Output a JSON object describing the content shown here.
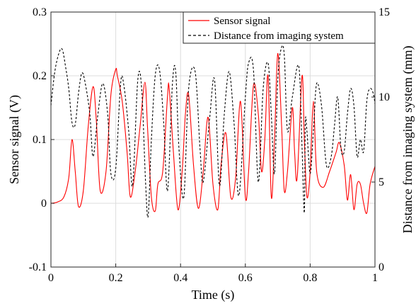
{
  "chart_data": {
    "type": "line",
    "xlabel": "Time (s)",
    "ylabel_left": "Sensor signal (V)",
    "ylabel_right": "Distance from imaging system (mm)",
    "xlim": [
      0,
      1
    ],
    "ylim_left": [
      -0.1,
      0.3
    ],
    "ylim_right": [
      0,
      15
    ],
    "x_ticks": [
      "0",
      "0.2",
      "0.4",
      "0.6",
      "0.8",
      "1"
    ],
    "y_left_ticks": [
      "-0.1",
      "0",
      "0.1",
      "0.2",
      "0.3"
    ],
    "y_right_ticks": [
      "0",
      "5",
      "10",
      "15"
    ],
    "grid": true,
    "legend_position": "top-right",
    "series": [
      {
        "name": "Sensor signal",
        "axis": "left",
        "color": "#ff0000",
        "style": "solid",
        "x": [
          0,
          0.02,
          0.04,
          0.055,
          0.065,
          0.075,
          0.085,
          0.1,
          0.115,
          0.13,
          0.14,
          0.152,
          0.17,
          0.185,
          0.2,
          0.205,
          0.22,
          0.235,
          0.245,
          0.26,
          0.275,
          0.29,
          0.298,
          0.31,
          0.322,
          0.33,
          0.345,
          0.36,
          0.365,
          0.378,
          0.392,
          0.405,
          0.415,
          0.425,
          0.44,
          0.455,
          0.47,
          0.485,
          0.5,
          0.515,
          0.525,
          0.54,
          0.555,
          0.57,
          0.585,
          0.6,
          0.61,
          0.625,
          0.64,
          0.65,
          0.66,
          0.67,
          0.68,
          0.69,
          0.7,
          0.712,
          0.72,
          0.73,
          0.745,
          0.752,
          0.76,
          0.775,
          0.782,
          0.79,
          0.8,
          0.81,
          0.82,
          0.84,
          0.86,
          0.88,
          0.89,
          0.905,
          0.915,
          0.925,
          0.935,
          0.945,
          0.955,
          0.965,
          0.975,
          0.985,
          1.0
        ],
        "y": [
          0,
          0.002,
          0.01,
          0.04,
          0.1,
          0.05,
          -0.005,
          0.02,
          0.12,
          0.183,
          0.13,
          0.02,
          0.05,
          0.17,
          0.21,
          0.2,
          0.16,
          0.08,
          0.01,
          0.05,
          0.12,
          0.19,
          0.12,
          0.01,
          -0.012,
          0.03,
          0.05,
          0.17,
          0.18,
          0.08,
          -0.01,
          0.05,
          0.14,
          0.17,
          0.06,
          -0.008,
          0.05,
          0.135,
          0.03,
          -0.01,
          0.06,
          0.11,
          0.01,
          0.04,
          0.16,
          0.01,
          0.05,
          0.185,
          0.14,
          0.05,
          0.1,
          0.2,
          0.01,
          0.1,
          0.235,
          0.12,
          0.02,
          0.05,
          0.15,
          0.08,
          0.04,
          0.2,
          0.1,
          0.01,
          0.05,
          0.16,
          0.05,
          0.025,
          0.05,
          0.08,
          0.095,
          0.06,
          0.005,
          0.045,
          -0.01,
          0.03,
          0.03,
          0.0,
          -0.015,
          0.03,
          0.058
        ]
      },
      {
        "name": "Distance from imaging system",
        "axis": "right",
        "color": "#000000",
        "style": "dashed",
        "x": [
          0,
          0.012,
          0.025,
          0.035,
          0.045,
          0.055,
          0.065,
          0.075,
          0.085,
          0.095,
          0.105,
          0.12,
          0.13,
          0.145,
          0.16,
          0.175,
          0.185,
          0.2,
          0.215,
          0.225,
          0.24,
          0.252,
          0.268,
          0.28,
          0.292,
          0.3,
          0.31,
          0.322,
          0.335,
          0.348,
          0.36,
          0.375,
          0.385,
          0.395,
          0.41,
          0.425,
          0.445,
          0.46,
          0.47,
          0.49,
          0.505,
          0.52,
          0.535,
          0.55,
          0.565,
          0.58,
          0.6,
          0.61,
          0.625,
          0.64,
          0.655,
          0.67,
          0.68,
          0.69,
          0.7,
          0.71,
          0.72,
          0.73,
          0.745,
          0.765,
          0.775,
          0.782,
          0.785,
          0.79,
          0.8,
          0.81,
          0.82,
          0.835,
          0.85,
          0.865,
          0.875,
          0.885,
          0.895,
          0.905,
          0.915,
          0.925,
          0.935,
          0.945,
          0.955,
          0.965,
          0.975,
          0.985,
          0.995,
          1.0
        ],
        "y": [
          9.5,
          11.5,
          12.6,
          12.8,
          11.8,
          10.5,
          8.5,
          8.4,
          10.2,
          11.4,
          10.9,
          9.0,
          6.5,
          9.0,
          10.8,
          9.0,
          5.5,
          5.8,
          10.8,
          10.7,
          8.0,
          4.8,
          11.0,
          10.5,
          5.0,
          3.0,
          7.5,
          11.3,
          11.6,
          8.5,
          4.5,
          10.8,
          11.5,
          7.0,
          4.1,
          10.5,
          11.5,
          7.0,
          5.0,
          8.8,
          11.0,
          4.8,
          9.0,
          11.5,
          8.5,
          4.2,
          10.0,
          12.0,
          11.6,
          5.0,
          10.5,
          12.0,
          9.0,
          5.5,
          11.0,
          12.8,
          12.5,
          8.0,
          10.0,
          11.8,
          7.0,
          3.2,
          8.5,
          8.0,
          5.5,
          8.0,
          10.8,
          9.5,
          6.0,
          6.5,
          8.3,
          10.0,
          7.0,
          6.8,
          9.0,
          10.5,
          9.5,
          6.5,
          7.5,
          6.8,
          9.8,
          10.5,
          10.2,
          9.6
        ]
      }
    ]
  }
}
